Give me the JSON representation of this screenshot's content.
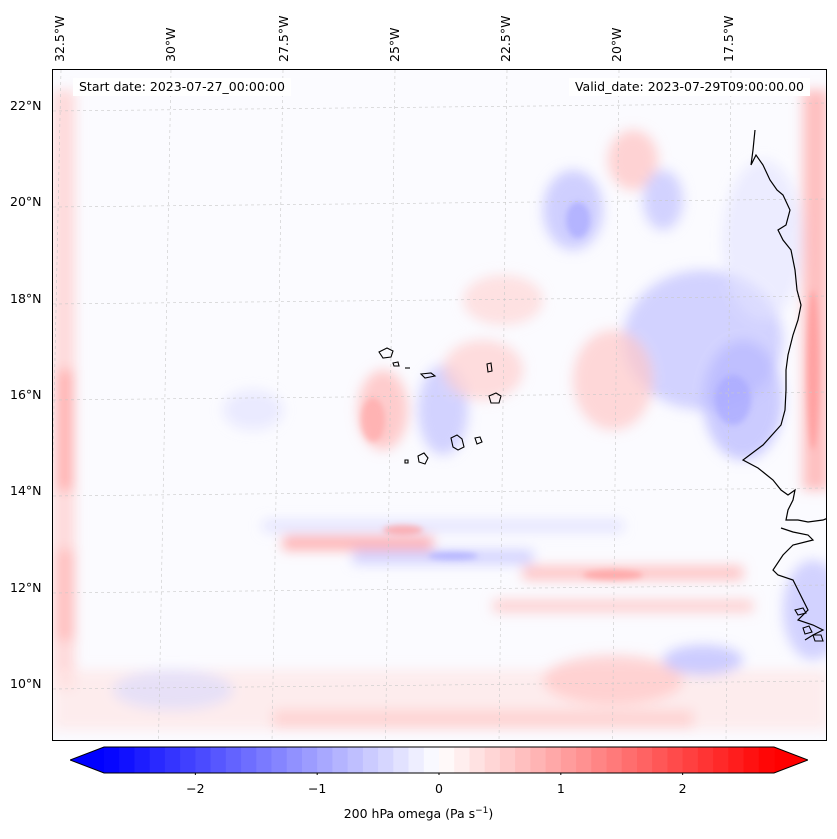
{
  "map": {
    "start_date": "Start date: 2023-07-27_00:00:00",
    "valid_date": "Valid_date: 2023-07-29T09:00:00.00",
    "longitude_labels": [
      "32.5°W",
      "30°W",
      "27.5°W",
      "25°W",
      "22.5°W",
      "20°W",
      "17.5°W"
    ],
    "latitude_labels": [
      "22°N",
      "20°N",
      "18°N",
      "16°N",
      "14°N",
      "12°N",
      "10°N"
    ],
    "field": "200 hPa omega",
    "colors": {
      "negative": "#0000ff",
      "zero": "#ffffff",
      "positive": "#ff0000",
      "coast": "#000000",
      "grid": "#c8c8c8"
    }
  },
  "colorbar": {
    "min": -2.75,
    "max": 2.75,
    "ticks": [
      -2,
      -1,
      0,
      1,
      2
    ],
    "tick_labels": [
      "−2",
      "−1",
      "0",
      "1",
      "2"
    ],
    "label_text": "200 hPa omega (Pa s",
    "label_exponent": "−1",
    "label_close": ")"
  }
}
